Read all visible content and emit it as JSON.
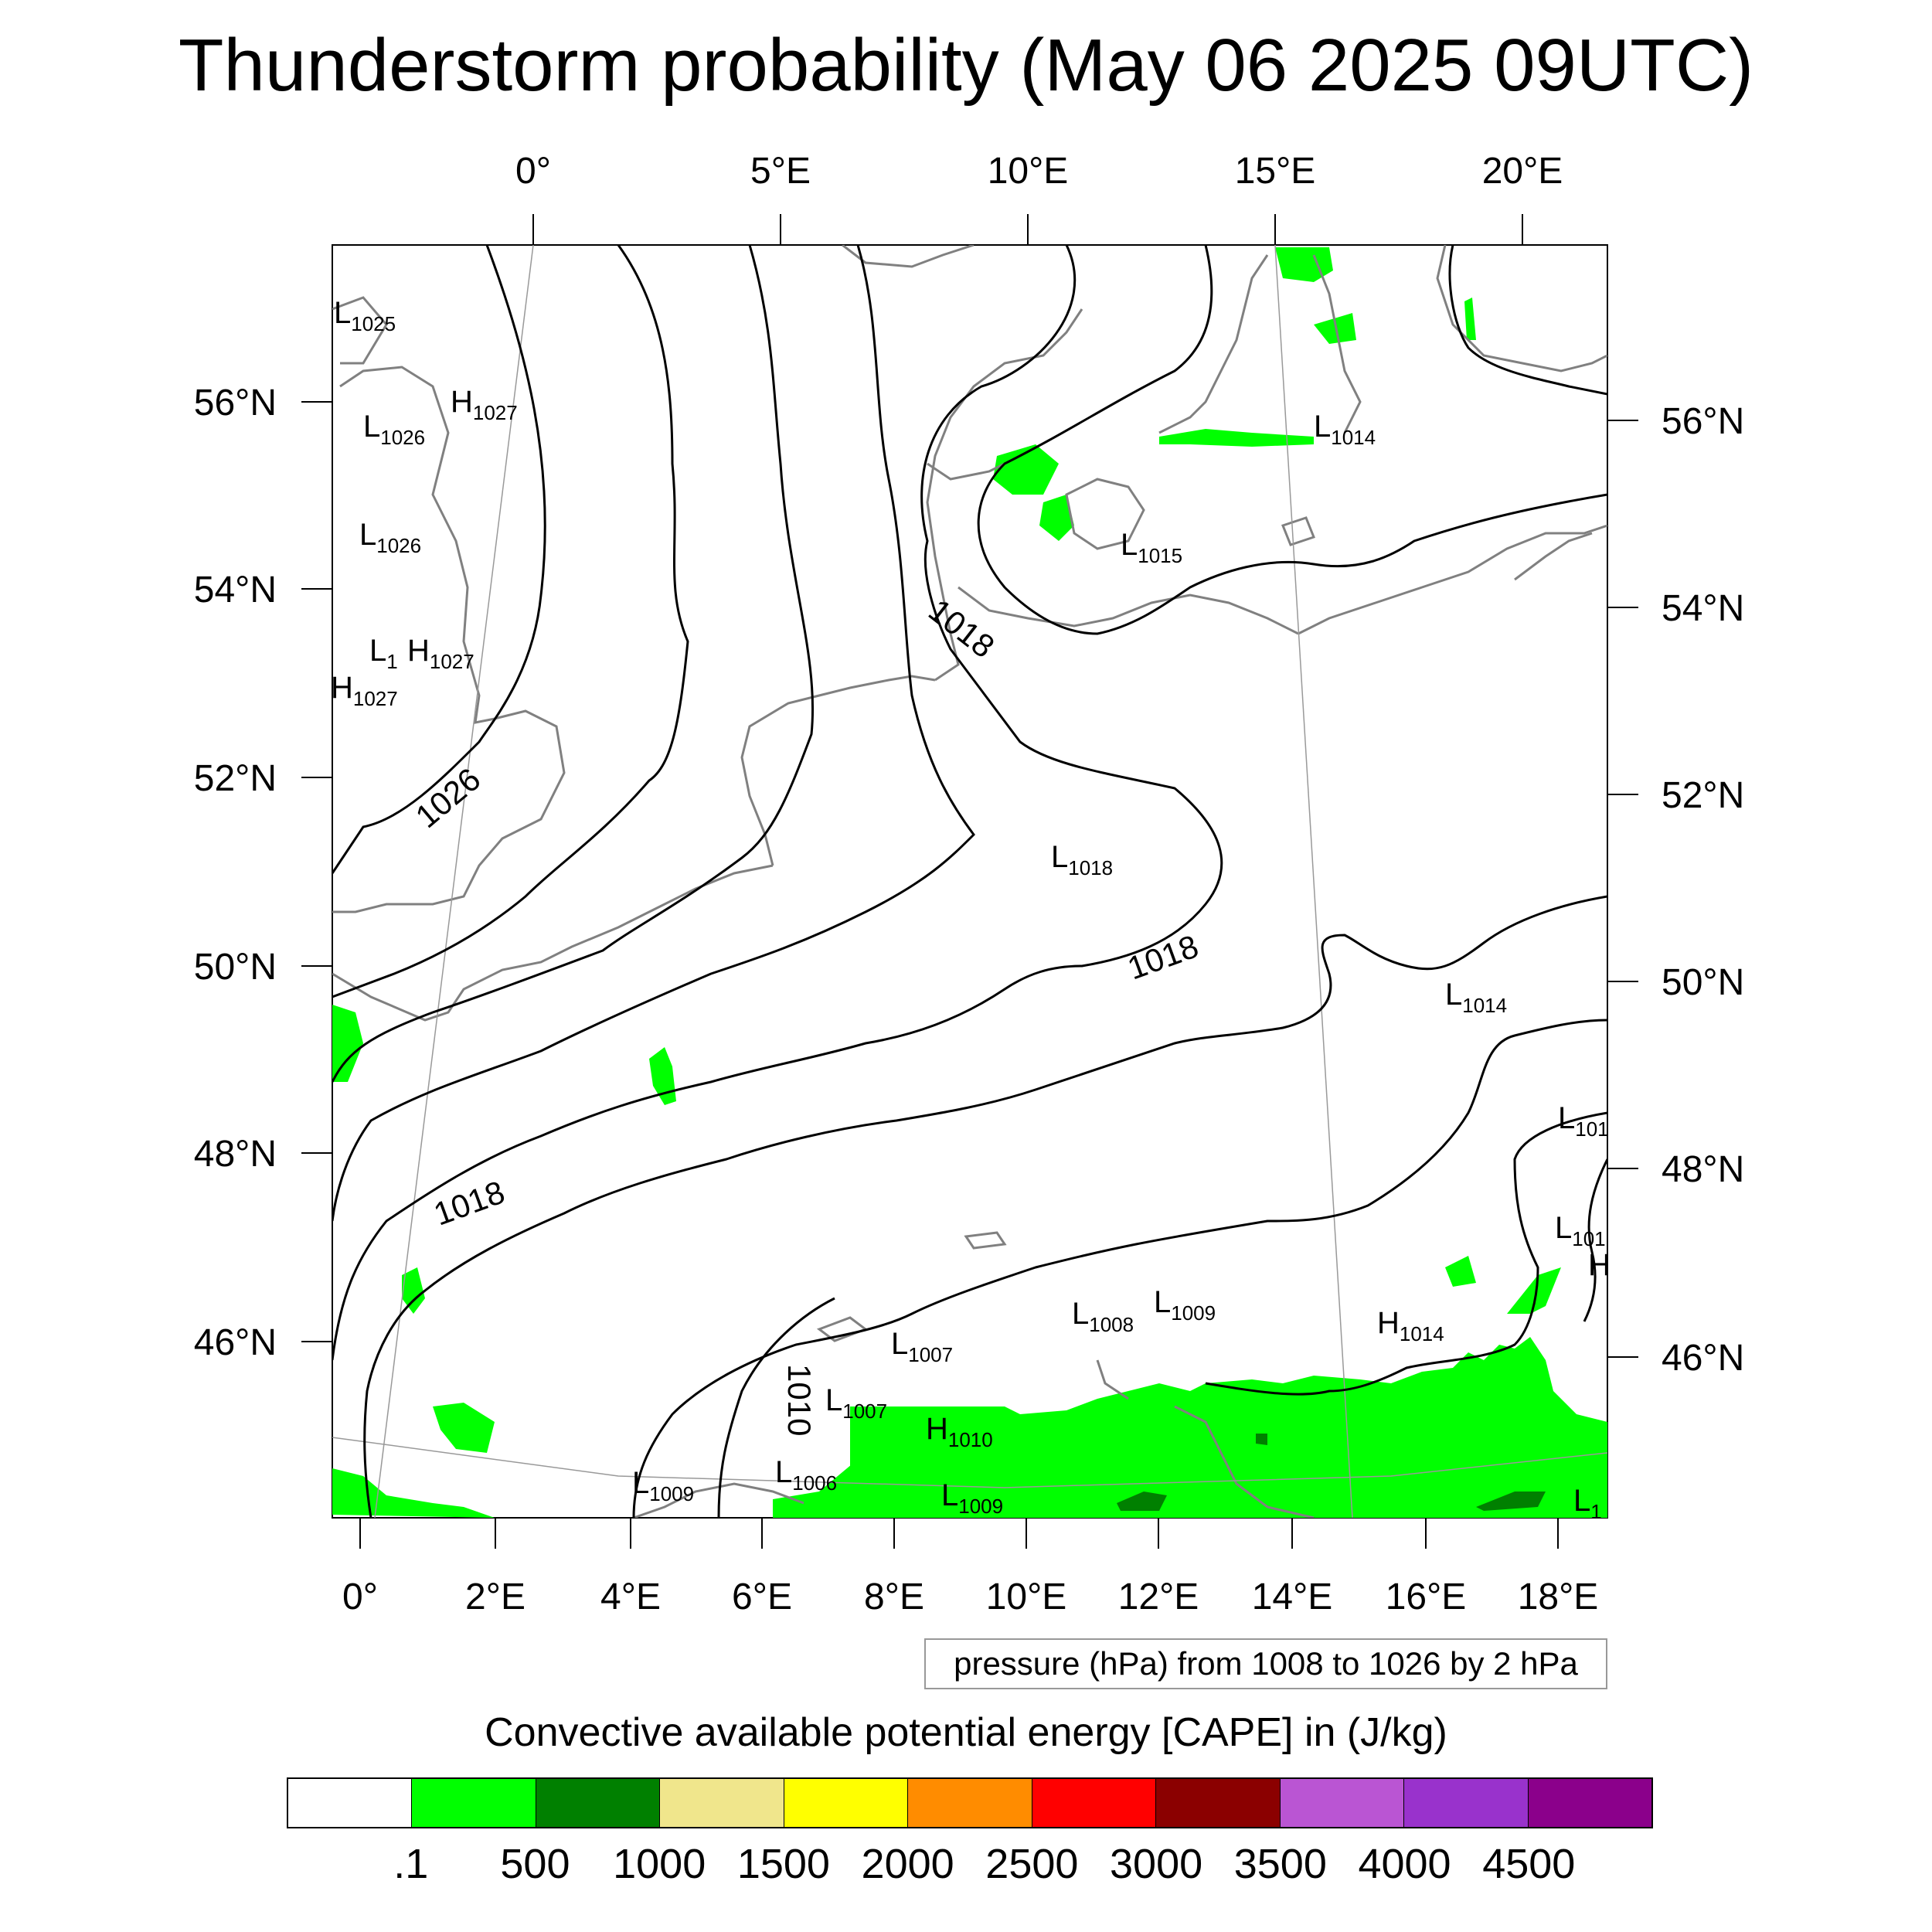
{
  "title": "Thunderstorm probability (May 06 2025 09UTC)",
  "map": {
    "top_lon_labels": [
      "0°",
      "5°E",
      "10°E",
      "15°E",
      "20°E"
    ],
    "bottom_lon_labels": [
      "0°",
      "2°E",
      "4°E",
      "6°E",
      "8°E",
      "10°E",
      "12°E",
      "14°E",
      "16°E",
      "18°E"
    ],
    "left_lat_labels": [
      "56°N",
      "54°N",
      "52°N",
      "50°N",
      "48°N",
      "46°N"
    ],
    "right_lat_labels": [
      "56°N",
      "54°N",
      "52°N",
      "50°N",
      "48°N",
      "46°N"
    ],
    "isobar_labels": [
      "1026",
      "1018",
      "1018",
      "1018",
      "1010"
    ],
    "pressure_centers": [
      {
        "type": "L",
        "value": "1025"
      },
      {
        "type": "H",
        "value": "1027"
      },
      {
        "type": "L",
        "value": "1026"
      },
      {
        "type": "L",
        "value": "1026"
      },
      {
        "type": "L",
        "value": "1"
      },
      {
        "type": "H",
        "value": "1027"
      },
      {
        "type": "H",
        "value": "1027"
      },
      {
        "type": "L",
        "value": "1014"
      },
      {
        "type": "L",
        "value": "1015"
      },
      {
        "type": "L",
        "value": "1018"
      },
      {
        "type": "L",
        "value": "1014"
      },
      {
        "type": "L",
        "value": "101"
      },
      {
        "type": "L",
        "value": "101"
      },
      {
        "type": "H",
        "value": ""
      },
      {
        "type": "L",
        "value": "1008"
      },
      {
        "type": "L",
        "value": "1009"
      },
      {
        "type": "L",
        "value": "1007"
      },
      {
        "type": "H",
        "value": "1014"
      },
      {
        "type": "L",
        "value": "1007"
      },
      {
        "type": "H",
        "value": "1010"
      },
      {
        "type": "L",
        "value": "1006"
      },
      {
        "type": "L",
        "value": "1009"
      },
      {
        "type": "L",
        "value": "1009"
      },
      {
        "type": "L",
        "value": "1"
      }
    ]
  },
  "pressure_note": "pressure (hPa) from 1008 to 1026 by 2 hPa",
  "colorbar": {
    "title": "Convective available potential energy [CAPE] in (J/kg)",
    "colors": [
      "#ffffff",
      "#00ff00",
      "#008000",
      "#f0e68c",
      "#ffff00",
      "#ff8c00",
      "#ff0000",
      "#8b0000",
      "#ba55d3",
      "#9932cc",
      "#8b008b"
    ],
    "labels": [
      ".1",
      "500",
      "1000",
      "1500",
      "2000",
      "2500",
      "3000",
      "3500",
      "4000",
      "4500"
    ]
  },
  "colors": {
    "coast": "#808080",
    "isobar": "#000000",
    "cape_low": "#00ff00",
    "cape_mid": "#008000"
  }
}
